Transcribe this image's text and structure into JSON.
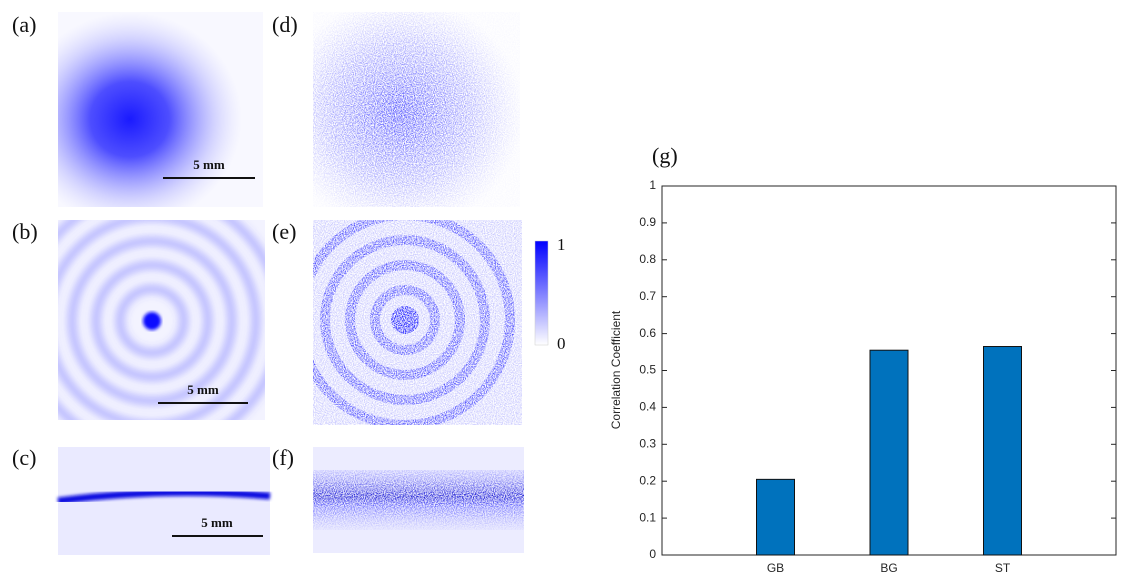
{
  "panels": [
    {
      "label": "(a)",
      "scale_bar": "5 mm"
    },
    {
      "label": "(b)",
      "scale_bar": "5 mm"
    },
    {
      "label": "(c)",
      "scale_bar": "5 mm"
    },
    {
      "label": "(d)"
    },
    {
      "label": "(e)"
    },
    {
      "label": "(f)"
    }
  ],
  "colorbar": {
    "ticks": [
      1,
      0
    ]
  },
  "chart_data": {
    "type": "bar",
    "title": "(g)",
    "ylabel": "Correlation Coefficient",
    "categories": [
      "GB",
      "BG",
      "ST"
    ],
    "values": [
      0.205,
      0.555,
      0.565
    ],
    "color": "#0072bd",
    "ylim": [
      0,
      1
    ],
    "yticks": [
      0,
      0.1,
      0.2,
      0.3,
      0.4,
      0.5,
      0.6,
      0.7,
      0.8,
      0.9,
      1
    ]
  }
}
